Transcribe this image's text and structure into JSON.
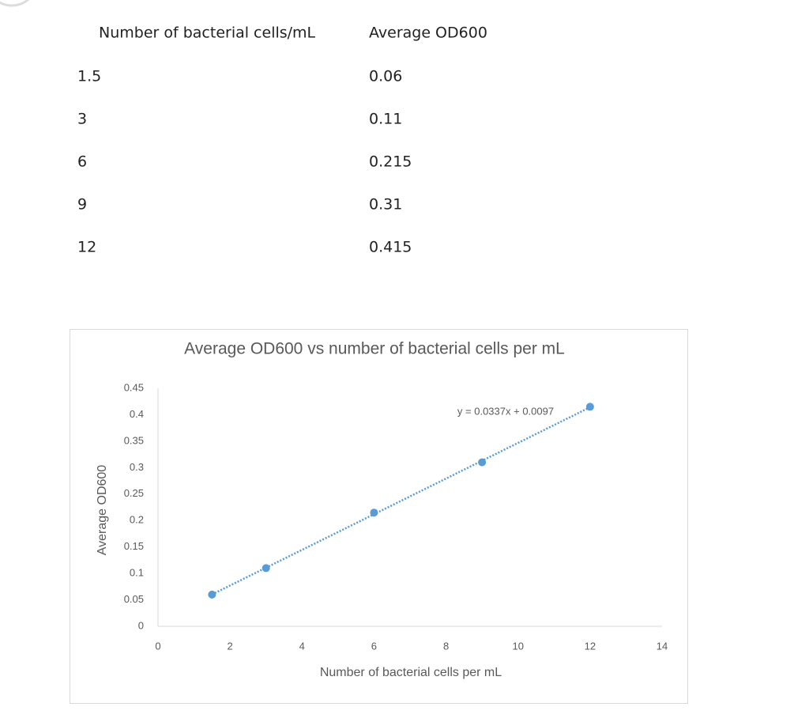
{
  "table": {
    "header": [
      "Number of bacterial cells/mL",
      "Average OD600"
    ],
    "rows": [
      [
        "1.5",
        "0.06"
      ],
      [
        "3",
        "0.11"
      ],
      [
        "6",
        "0.215"
      ],
      [
        "9",
        "0.31"
      ],
      [
        "12",
        "0.415"
      ]
    ]
  },
  "chart_data": {
    "type": "scatter",
    "title": "Average OD600 vs number of bacterial cells per mL",
    "x_label": "Number of bacterial cells per mL",
    "y_label": "Average OD600",
    "x": [
      1.5,
      3,
      6,
      9,
      12
    ],
    "values": [
      0.06,
      0.11,
      0.215,
      0.31,
      0.415
    ],
    "color": "#5b9bd5",
    "xlim": [
      0,
      14
    ],
    "xticks": [
      0,
      2,
      4,
      6,
      8,
      10,
      12,
      14
    ],
    "ylim": [
      0,
      0.45
    ],
    "yticks": [
      0,
      0.05,
      0.1,
      0.15,
      0.2,
      0.25,
      0.3,
      0.35,
      0.4,
      0.45
    ],
    "trendline": {
      "slope": 0.0337,
      "intercept": 0.0097,
      "label": "y = 0.0337x + 0.0097"
    }
  }
}
